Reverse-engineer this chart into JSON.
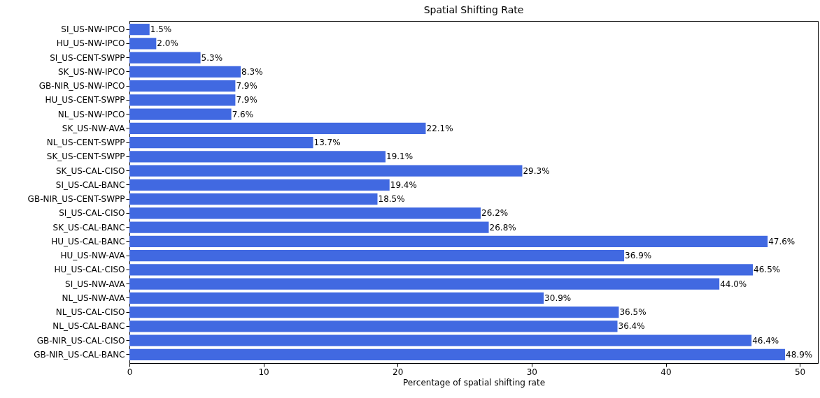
{
  "chart_data": {
    "type": "bar",
    "orientation": "horizontal",
    "title": "Spatial Shifting Rate",
    "xlabel": "Percentage of spatial shifting rate",
    "categories": [
      "SI_US-NW-IPCO",
      "HU_US-NW-IPCO",
      "SI_US-CENT-SWPP",
      "SK_US-NW-IPCO",
      "GB-NIR_US-NW-IPCO",
      "HU_US-CENT-SWPP",
      "NL_US-NW-IPCO",
      "SK_US-NW-AVA",
      "NL_US-CENT-SWPP",
      "SK_US-CENT-SWPP",
      "SK_US-CAL-CISO",
      "SI_US-CAL-BANC",
      "GB-NIR_US-CENT-SWPP",
      "SI_US-CAL-CISO",
      "SK_US-CAL-BANC",
      "HU_US-CAL-BANC",
      "HU_US-NW-AVA",
      "HU_US-CAL-CISO",
      "SI_US-NW-AVA",
      "NL_US-NW-AVA",
      "NL_US-CAL-CISO",
      "NL_US-CAL-BANC",
      "GB-NIR_US-CAL-CISO",
      "GB-NIR_US-CAL-BANC"
    ],
    "values": [
      1.5,
      2.0,
      5.3,
      8.3,
      7.9,
      7.9,
      7.6,
      22.1,
      13.7,
      19.1,
      29.3,
      19.4,
      18.5,
      26.2,
      26.8,
      47.6,
      36.9,
      46.5,
      44.0,
      30.9,
      36.5,
      36.4,
      46.4,
      48.9
    ],
    "value_labels": [
      "1.5%",
      "2.0%",
      "5.3%",
      "8.3%",
      "7.9%",
      "7.9%",
      "7.6%",
      "22.1%",
      "13.7%",
      "19.1%",
      "29.3%",
      "19.4%",
      "18.5%",
      "26.2%",
      "26.8%",
      "47.6%",
      "36.9%",
      "46.5%",
      "44.0%",
      "30.9%",
      "36.5%",
      "36.4%",
      "46.4%",
      "48.9%"
    ],
    "color": "#4169e1",
    "xlim": [
      0,
      51.35
    ],
    "xticks": [
      0,
      10,
      20,
      30,
      40,
      50
    ],
    "grid": false
  }
}
